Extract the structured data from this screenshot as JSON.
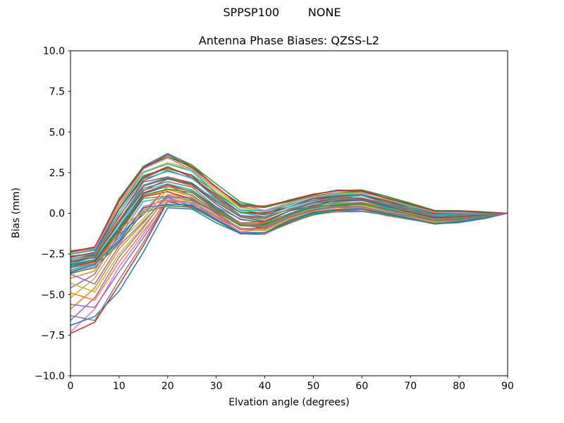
{
  "header": {
    "suptitle": "SPPSP100        NONE",
    "axes_title": "Antenna Phase Biases: QZSS-L2"
  },
  "chart_data": {
    "type": "line",
    "suptitle": "SPPSP100        NONE",
    "title": "Antenna Phase Biases: QZSS-L2",
    "xlabel": "Elvation angle (degrees)",
    "ylabel": "Bias (mm)",
    "xlim": [
      0,
      90
    ],
    "ylim": [
      -10,
      10
    ],
    "x_ticks": [
      0,
      10,
      20,
      30,
      40,
      50,
      60,
      70,
      80,
      90
    ],
    "y_ticks": [
      -10.0,
      -7.5,
      -5.0,
      -2.5,
      0.0,
      2.5,
      5.0,
      7.5,
      10.0
    ],
    "grid": false,
    "legend": "none",
    "background": "#ffffff",
    "frame_color": "#000000",
    "line_width": 1.5,
    "x": [
      0,
      5,
      10,
      15,
      20,
      25,
      30,
      35,
      40,
      45,
      50,
      55,
      60,
      65,
      70,
      75,
      80,
      85,
      90
    ],
    "band_mean": [
      -3.0,
      -2.7,
      -0.5,
      1.55,
      2.05,
      1.65,
      0.6,
      -0.35,
      -0.45,
      0.1,
      0.55,
      0.75,
      0.8,
      0.45,
      0.1,
      -0.25,
      -0.2,
      -0.12,
      0.0
    ],
    "band_halfwidth": [
      0.7,
      0.6,
      1.4,
      1.35,
      1.55,
      1.35,
      1.1,
      0.95,
      0.85,
      0.7,
      0.62,
      0.65,
      0.62,
      0.58,
      0.5,
      0.42,
      0.35,
      0.2,
      0.0
    ],
    "jitter_fraction": 0.22,
    "palette": [
      "#1f77b4",
      "#ff7f0e",
      "#2ca02c",
      "#d62728",
      "#9467bd",
      "#8c564b",
      "#e377c2",
      "#7f7f7f",
      "#bcbd22",
      "#17becf"
    ],
    "series": [
      {
        "t": 0.97
      },
      {
        "t": -0.42
      },
      {
        "t": 0.55
      },
      {
        "t": -0.95,
        "head": [
          -7.4,
          -6.7,
          -4.4,
          -2.0
        ]
      },
      {
        "t": -0.81
      },
      {
        "t": 0.23
      },
      {
        "t": -0.8,
        "head": [
          -7.3,
          -5.9,
          -3.3,
          -1.3
        ]
      },
      {
        "t": -0.1
      },
      {
        "t": 0.74
      },
      {
        "t": -0.61
      },
      {
        "t": -1.0,
        "head": [
          -6.9,
          -6.35,
          -4.8,
          -2.4
        ]
      },
      {
        "t": 0.1
      },
      {
        "t": 0.87
      },
      {
        "t": -0.29
      },
      {
        "t": -0.7,
        "head": [
          -6.6,
          -5.2,
          -2.7,
          -0.9
        ]
      },
      {
        "t": 0.42
      },
      {
        "t": -0.94
      },
      {
        "t": -0.9,
        "head": [
          -6.3,
          -6.6,
          -4.1,
          -1.8
        ]
      },
      {
        "t": 0.68
      },
      {
        "t": -0.16
      },
      {
        "t": 0.03
      },
      {
        "t": -0.55,
        "head": [
          -5.9,
          -4.6,
          -2.2,
          -0.6
        ]
      },
      {
        "t": 1.0
      },
      {
        "t": -0.48
      },
      {
        "t": -0.85,
        "head": [
          -5.6,
          -5.8,
          -3.6,
          -1.5
        ]
      },
      {
        "t": 0.29
      },
      {
        "t": -0.74
      },
      {
        "t": 0.16
      },
      {
        "t": -0.45,
        "head": [
          -5.2,
          -4.0,
          -1.7,
          -0.35
        ]
      },
      {
        "t": 0.61
      },
      {
        "t": -0.23
      },
      {
        "t": -0.75,
        "head": [
          -4.9,
          -5.35,
          -3.0,
          -1.1
        ]
      },
      {
        "t": -1.0
      },
      {
        "t": 0.48
      },
      {
        "t": -0.35,
        "head": [
          -4.6,
          -3.75,
          -1.3,
          -0.1
        ]
      },
      {
        "t": -0.03
      },
      {
        "t": 0.81
      },
      {
        "t": -0.55
      },
      {
        "t": -0.65,
        "head": [
          -4.3,
          -4.85,
          -2.5,
          -0.8
        ]
      },
      {
        "t": 0.35
      },
      {
        "t": -0.87
      },
      {
        "t": -0.25,
        "head": [
          -4.0,
          -3.55,
          -1.0,
          0.1
        ]
      },
      {
        "t": -0.35
      },
      {
        "t": 0.94
      },
      {
        "t": -0.6,
        "head": [
          -3.75,
          -4.35,
          -2.0,
          -0.5
        ]
      }
    ]
  }
}
